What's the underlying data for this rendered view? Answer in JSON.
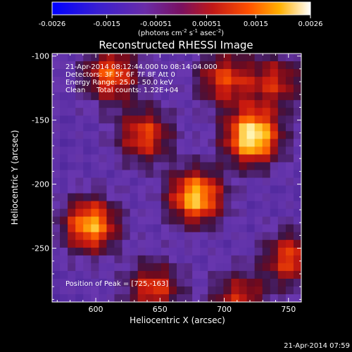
{
  "chart_data": {
    "type": "heatmap",
    "title": "Reconstructed RHESSI Image",
    "xlabel": "Heliocentric X (arcsec)",
    "ylabel": "Heliocentric Y (arcsec)",
    "xlim": [
      566,
      760
    ],
    "ylim": [
      -292,
      -98
    ],
    "x_ticks": [
      600,
      650,
      700,
      750
    ],
    "y_ticks": [
      -100,
      -150,
      -200,
      -250
    ],
    "colorbar": {
      "min": -0.0026,
      "max": 0.0026,
      "ticks": [
        "-0.0026",
        "-0.0015",
        "-0.00051",
        "0.00051",
        "0.0015",
        "0.0026"
      ],
      "label_main": "(photons cm",
      "label_sup1": "-2",
      "label_mid1": " s",
      "label_sup2": "-1",
      "label_mid2": " asec",
      "label_sup3": "-2",
      "label_end": ")"
    },
    "annotations": [
      "21-Apr-2014 08:12:44.000 to 08:14:04.000",
      "Detectors: 3F 5F 6F 7F 8F  Att 0",
      "Energy Range: 25.0 - 50.0 keV",
      "Clean     Total counts: 1.22E+04"
    ],
    "peak_label": "Position of Peak = [725,-163]",
    "peak": [
      725,
      -163
    ],
    "sources": [
      {
        "x": 722,
        "y": -163,
        "value": 0.0026
      },
      {
        "x": 678,
        "y": -210,
        "value": 0.0021
      },
      {
        "x": 596,
        "y": -232,
        "value": 0.0019
      },
      {
        "x": 612,
        "y": -115,
        "value": 0.0013
      },
      {
        "x": 638,
        "y": -162,
        "value": 0.0011
      },
      {
        "x": 700,
        "y": -118,
        "value": 0.001
      },
      {
        "x": 645,
        "y": -282,
        "value": 0.001
      },
      {
        "x": 752,
        "y": -258,
        "value": 0.0011
      },
      {
        "x": 740,
        "y": -120,
        "value": 0.0007
      },
      {
        "x": 712,
        "y": -290,
        "value": 0.0008
      }
    ],
    "grid": false
  },
  "footer_timestamp": "21-Apr-2014 07:59"
}
